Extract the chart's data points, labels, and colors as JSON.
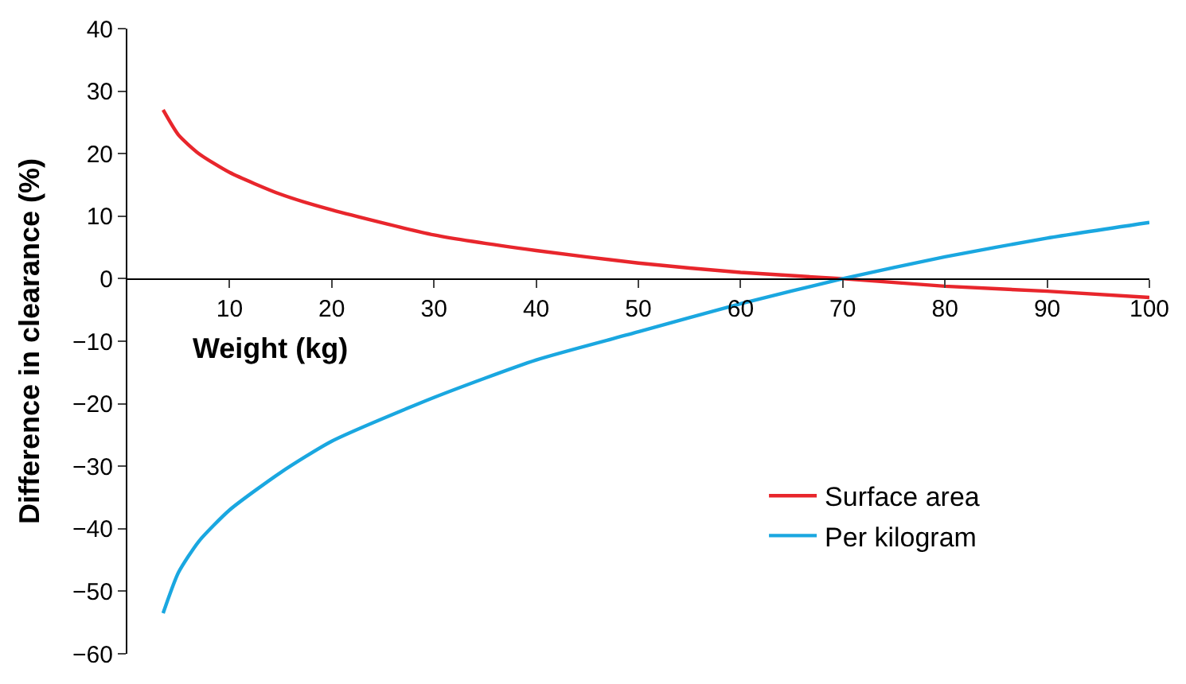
{
  "chart_data": {
    "type": "line",
    "xlabel": "Weight (kg)",
    "ylabel": "Difference in clearance (%)",
    "xlim": [
      0,
      100
    ],
    "xticks": [
      10,
      20,
      30,
      40,
      50,
      60,
      70,
      80,
      90,
      100
    ],
    "ylim": [
      -60,
      40
    ],
    "yticks": [
      -60,
      -50,
      -40,
      -30,
      -20,
      -10,
      0,
      10,
      20,
      30,
      40
    ],
    "legend": "bottom right",
    "marker": "none",
    "line_style": "solid",
    "series": [
      {
        "name": "Surface area",
        "color": "#e8262c",
        "x": [
          3.5,
          5,
          7,
          10,
          15,
          20,
          30,
          40,
          50,
          60,
          70,
          80,
          90,
          100
        ],
        "values": [
          27,
          23,
          20,
          17,
          13.5,
          11,
          7,
          4.5,
          2.5,
          1,
          0,
          -1.2,
          -2,
          -3
        ]
      },
      {
        "name": "Per kilogram",
        "color": "#1aa7e0",
        "x": [
          3.5,
          5,
          7,
          10,
          15,
          20,
          30,
          40,
          50,
          60,
          70,
          80,
          90,
          100
        ],
        "values": [
          -53.5,
          -47,
          -42,
          -37,
          -31,
          -26,
          -19,
          -13,
          -8.5,
          -4,
          0,
          3.5,
          6.5,
          9
        ]
      }
    ]
  }
}
